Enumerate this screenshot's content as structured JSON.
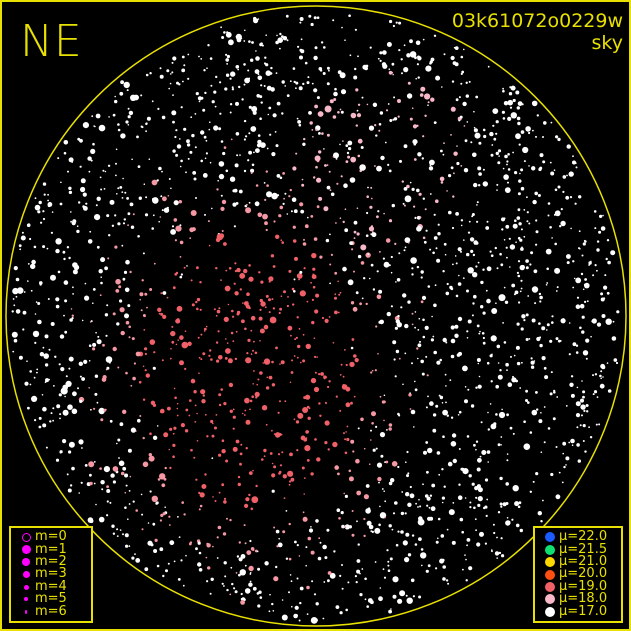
{
  "header": {
    "direction": "NE",
    "camera_id": "03k61072o0229w",
    "image_type": "sky"
  },
  "colors": {
    "frame": "#e8e000",
    "background": "#000000",
    "magnitude_marker": "#ff00ff"
  },
  "magnitude_legend": [
    {
      "label": "m=0",
      "style": "ring"
    },
    {
      "label": "m=1"
    },
    {
      "label": "m=2"
    },
    {
      "label": "m=3"
    },
    {
      "label": "m=4"
    },
    {
      "label": "m=5"
    },
    {
      "label": "m=6"
    }
  ],
  "brightness_legend": [
    {
      "label": "μ=22.0",
      "color": "#1a5cff"
    },
    {
      "label": "μ=21.5",
      "color": "#10e070"
    },
    {
      "label": "μ=21.0",
      "color": "#ffd800"
    },
    {
      "label": "μ=20.0",
      "color": "#ff5010"
    },
    {
      "label": "μ=19.0",
      "color": "#f06068"
    },
    {
      "label": "μ=18.0",
      "color": "#f8b8c8"
    },
    {
      "label": "μ=17.0",
      "color": "#ffffff"
    }
  ]
}
